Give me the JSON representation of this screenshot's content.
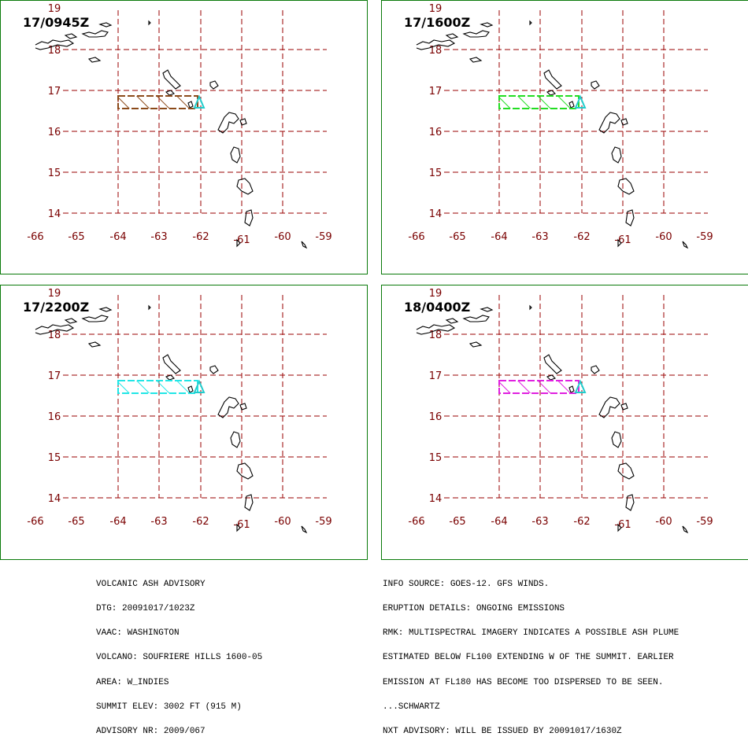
{
  "panels": [
    {
      "time": "17/0945Z",
      "plume_color": "#8b4a1a"
    },
    {
      "time": "17/1600Z",
      "plume_color": "#22dd22"
    },
    {
      "time": "17/2200Z",
      "plume_color": "#22e6e6"
    },
    {
      "time": "18/0400Z",
      "plume_color": "#e020e0"
    }
  ],
  "axes": {
    "lon_labels": [
      "-66",
      "-65",
      "-64",
      "-63",
      "-62",
      "-61",
      "-60",
      "-59"
    ],
    "lat_labels": [
      "19",
      "18",
      "17",
      "16",
      "15",
      "14"
    ],
    "label_color": "#7a0000",
    "grid_color": "#9a0000"
  },
  "volcano_marker_color": "#22cccc",
  "advisory_left": [
    "VOLCANIC ASH ADVISORY",
    "DTG: 20091017/1023Z",
    "VAAC: WASHINGTON",
    "VOLCANO: SOUFRIERE HILLS 1600-05",
    "AREA: W_INDIES",
    "SUMMIT ELEV: 3002 FT (915 M)",
    "ADVISORY NR: 2009/067"
  ],
  "advisory_right": [
    "INFO SOURCE: GOES-12. GFS WINDS.",
    "ERUPTION DETAILS: ONGOING EMISSIONS",
    "RMK: MULTISPECTRAL IMAGERY INDICATES A POSSIBLE ASH PLUME",
    "ESTIMATED BELOW FL100 EXTENDING W OF THE SUMMIT. EARLIER",
    "EMISSION AT FL180 HAS BECOME TOO DISPERSED TO BE SEEN.",
    "...SCHWARTZ",
    "NXT ADVISORY: WILL BE ISSUED BY 20091017/1630Z"
  ]
}
